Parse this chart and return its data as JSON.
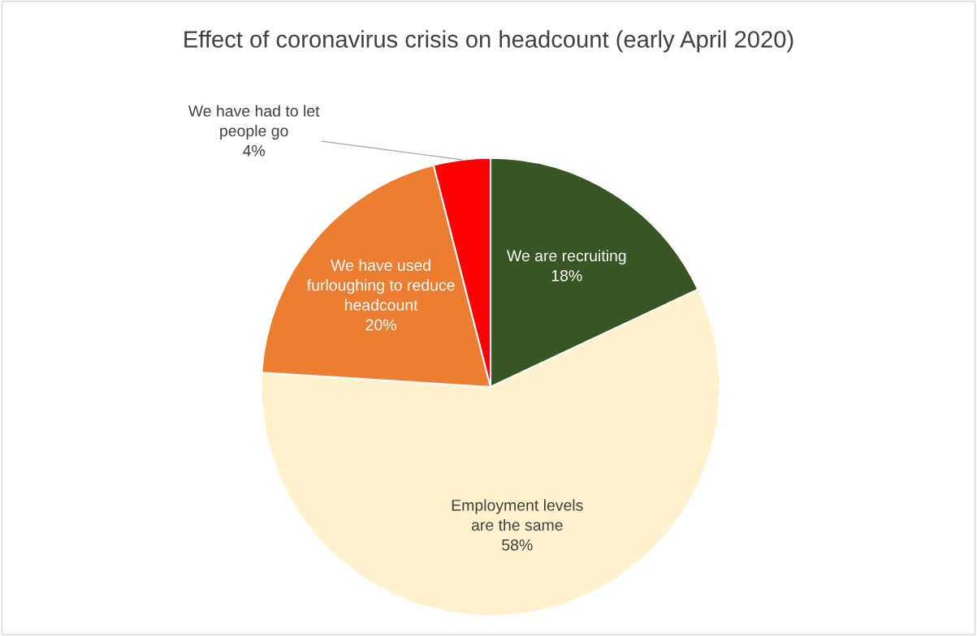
{
  "chart_data": {
    "type": "pie",
    "title": "Effect of coronavirus crisis on headcount (early April 2020)",
    "categories": [
      "We are recruiting",
      "Employment levels\nare the same",
      "We have used\nfurloughing to reduce\nheadcount",
      "We have had to let\npeople go"
    ],
    "values": [
      18,
      58,
      20,
      4
    ],
    "value_labels": [
      "18%",
      "58%",
      "20%",
      "4%"
    ],
    "colors": [
      "#375623",
      "#fff2cc",
      "#ed7d31",
      "#ff0000"
    ],
    "legend": false
  }
}
